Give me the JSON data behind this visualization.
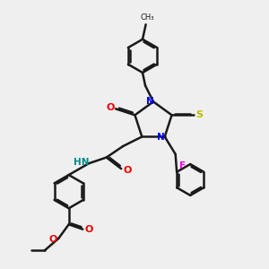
{
  "bg_color": "#efefef",
  "line_color": "#1a1a1a",
  "bond_width": 1.8,
  "dbo": 0.06,
  "colors": {
    "N": "#0000ee",
    "O": "#ee0000",
    "S": "#bbbb00",
    "F": "#ee00ee",
    "H": "#008888",
    "C": "#1a1a1a"
  }
}
